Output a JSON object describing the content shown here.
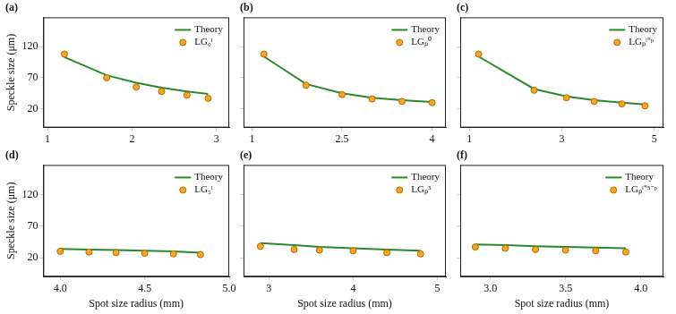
{
  "chart_data": [
    {
      "type": "line",
      "title": "(a)",
      "ylabel": "Speckle size (μm)",
      "grid": false,
      "legend": "top right",
      "tick_labels": true,
      "x": [
        1.2,
        1.7,
        2.05,
        2.35,
        2.65,
        2.9
      ],
      "xlim": [
        0.95,
        3.15
      ],
      "xticks": [
        1,
        2,
        3
      ],
      "ylim": [
        -10,
        167
      ],
      "yticks": [
        20,
        70,
        120
      ],
      "series": [
        {
          "name": "Theory",
          "type": "line",
          "color": "#2a8a2a",
          "line_style": "solid",
          "values": [
            103,
            74,
            62,
            54,
            48,
            44
          ]
        },
        {
          "name": "LG₀ˡ",
          "type": "scatter",
          "color": "#f5a623",
          "marker": "circle",
          "values": [
            108,
            70,
            55,
            48,
            42,
            37
          ]
        }
      ]
    },
    {
      "type": "line",
      "title": "(b)",
      "grid": false,
      "legend": "top right",
      "tick_labels": "x",
      "x": [
        1.2,
        1.9,
        2.5,
        3.0,
        3.5,
        4.0
      ],
      "xlim": [
        0.86,
        4.23
      ],
      "xticks": [
        1,
        2.5,
        4
      ],
      "ylim": [
        -10,
        167
      ],
      "yticks": [
        20,
        70,
        120
      ],
      "series": [
        {
          "name": "Theory",
          "type": "line",
          "color": "#2a8a2a",
          "line_style": "solid",
          "values": [
            104,
            60,
            45,
            38,
            34,
            31
          ]
        },
        {
          "name": "LGₚ⁰",
          "type": "scatter",
          "color": "#f5a623",
          "marker": "circle",
          "values": [
            108,
            58,
            43,
            36,
            32,
            30
          ]
        }
      ]
    },
    {
      "type": "line",
      "title": "(c)",
      "grid": false,
      "legend": "top right",
      "tick_labels": "x",
      "x": [
        1.2,
        2.4,
        3.1,
        3.7,
        4.3,
        4.8
      ],
      "xlim": [
        0.8,
        5.2
      ],
      "xticks": [
        1,
        3,
        5
      ],
      "ylim": [
        -10,
        167
      ],
      "yticks": [
        20,
        70,
        120
      ],
      "series": [
        {
          "name": "Theory",
          "type": "line",
          "color": "#2a8a2a",
          "line_style": "solid",
          "values": [
            104,
            52,
            40,
            34,
            30,
            27
          ]
        },
        {
          "name": "LGₚˡ⁼ᵖ",
          "type": "scatter",
          "color": "#f5a623",
          "marker": "circle",
          "values": [
            108,
            50,
            38,
            32,
            28,
            25
          ]
        }
      ]
    },
    {
      "type": "line",
      "title": "(d)",
      "xlabel": "Spot size radius (mm)",
      "ylabel": "Speckle size (μm)",
      "grid": false,
      "legend": "top right",
      "tick_labels": true,
      "x": [
        4.0,
        4.17,
        4.33,
        4.5,
        4.67,
        4.83
      ],
      "xlim": [
        3.9,
        5.0
      ],
      "xticks": [
        4,
        4.5,
        5
      ],
      "ylim": [
        -10,
        167
      ],
      "yticks": [
        20,
        70,
        120
      ],
      "series": [
        {
          "name": "Theory",
          "type": "line",
          "color": "#2a8a2a",
          "line_style": "solid",
          "values": [
            34,
            33,
            32,
            31,
            30,
            28
          ]
        },
        {
          "name": "LG₅ˡ",
          "type": "scatter",
          "color": "#f5a623",
          "marker": "circle",
          "values": [
            30,
            29,
            28,
            27,
            26,
            25
          ]
        }
      ]
    },
    {
      "type": "line",
      "title": "(e)",
      "xlabel": "Spot size radius (mm)",
      "grid": false,
      "legend": "top right",
      "tick_labels": "x",
      "x": [
        2.9,
        3.3,
        3.6,
        4.0,
        4.4,
        4.8
      ],
      "xlim": [
        2.7,
        5.1
      ],
      "xticks": [
        3,
        4,
        5
      ],
      "ylim": [
        -10,
        167
      ],
      "yticks": [
        20,
        70,
        120
      ],
      "series": [
        {
          "name": "Theory",
          "type": "line",
          "color": "#2a8a2a",
          "line_style": "solid",
          "values": [
            43,
            40,
            37,
            35,
            33,
            31
          ]
        },
        {
          "name": "LGₚ⁵",
          "type": "scatter",
          "color": "#f5a623",
          "marker": "circle",
          "values": [
            38,
            33,
            32,
            31,
            28,
            26
          ]
        }
      ]
    },
    {
      "type": "line",
      "title": "(f)",
      "xlabel": "Spot size radius (mm)",
      "grid": false,
      "legend": "top right",
      "tick_labels": "x",
      "x": [
        2.9,
        3.1,
        3.3,
        3.5,
        3.7,
        3.9
      ],
      "xlim": [
        2.8,
        4.15
      ],
      "xticks": [
        3,
        3.5,
        4
      ],
      "ylim": [
        -10,
        167
      ],
      "yticks": [
        20,
        70,
        120
      ],
      "series": [
        {
          "name": "Theory",
          "type": "line",
          "color": "#2a8a2a",
          "line_style": "solid",
          "values": [
            41,
            40,
            38,
            37,
            36,
            35
          ]
        },
        {
          "name": "LGₚˡ⁼⁵⁻ᵖ",
          "type": "scatter",
          "color": "#f5a623",
          "marker": "circle",
          "values": [
            37,
            35,
            33,
            32,
            31,
            29
          ]
        }
      ]
    }
  ]
}
